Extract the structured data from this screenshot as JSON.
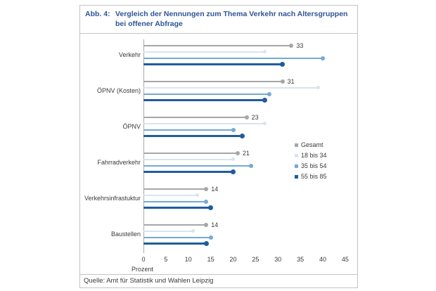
{
  "figure": {
    "caption_label": "Abb. 4:",
    "caption_line1": "Vergleich der Nennungen zum Thema Verkehr nach Altersgruppen",
    "caption_line2": "bei offener Abfrage",
    "source": "Quelle: Amt für Statistik und Wahlen Leipzig"
  },
  "chart_data": {
    "type": "bar",
    "variant": "horizontal-lollipop",
    "categories": [
      "Verkehr",
      "ÖPNV (Kosten)",
      "ÖPNV",
      "Fahrradverkehr",
      "Verkehrsinfrastuktur",
      "Baustellen"
    ],
    "series": [
      {
        "name": "Gesamt",
        "color": "#a6a6a6",
        "values": [
          33,
          31,
          23,
          21,
          14,
          14
        ]
      },
      {
        "name": "18 bis 34",
        "color": "#d9e4f0",
        "values": [
          27,
          39,
          27,
          20,
          12,
          11
        ]
      },
      {
        "name": "35 bis 54",
        "color": "#74a9d6",
        "values": [
          40,
          28,
          20,
          24,
          14,
          15
        ]
      },
      {
        "name": "55 bis 85",
        "color": "#1f5c9d",
        "values": [
          31,
          27,
          22,
          20,
          15,
          14
        ]
      }
    ],
    "value_labels_series": "Gesamt",
    "value_labels": [
      33,
      31,
      23,
      21,
      14,
      14
    ],
    "xlabel": "Prozent",
    "x_ticks": [
      0,
      5,
      10,
      15,
      20,
      25,
      30,
      35,
      40,
      45
    ],
    "xlim": [
      0,
      45
    ],
    "grid": false,
    "legend_position": "right-middle",
    "legend_entries": [
      "Gesamt",
      "18 bis 34",
      "35 bis 54",
      "55 bis 85"
    ]
  },
  "style": {
    "title_color": "#2f5496",
    "text_color": "#3a3a3a",
    "border_color": "#c3c3c3"
  }
}
